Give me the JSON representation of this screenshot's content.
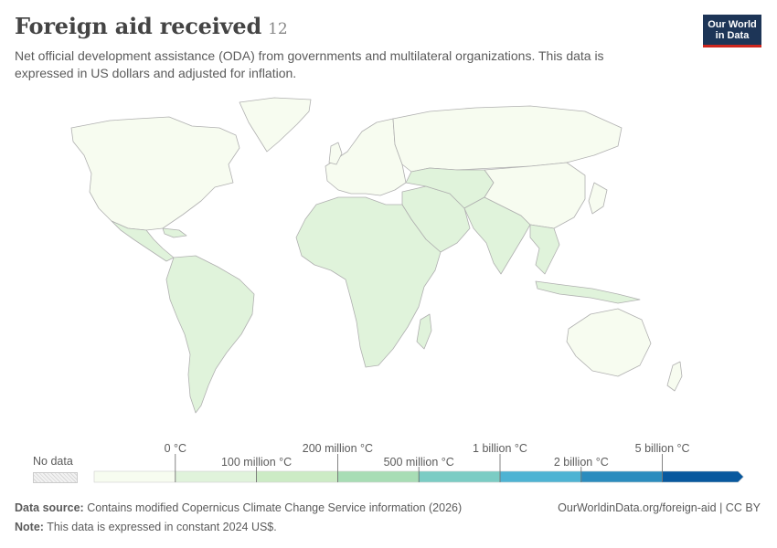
{
  "header": {
    "title": "Foreign aid received",
    "count": "12",
    "subtitle": "Net official development assistance (ODA) from governments and multilateral organizations. This data is expressed in US dollars and adjusted for inflation."
  },
  "logo": {
    "line1": "Our World",
    "line2": "in Data",
    "bg": "#1d3557",
    "accent": "#ce261e"
  },
  "legend": {
    "no_data_label": "No data",
    "bins": [
      {
        "color": "#f7fcf0"
      },
      {
        "color": "#e0f3db"
      },
      {
        "color": "#ccebc5"
      },
      {
        "color": "#a8ddb5"
      },
      {
        "color": "#7bccc4"
      },
      {
        "color": "#4eb3d3"
      },
      {
        "color": "#2b8cbe"
      },
      {
        "color": "#08589e"
      }
    ],
    "labels_top": [
      "0 °C",
      "200 million °C",
      "1 billion °C",
      "5 billion °C"
    ],
    "labels_bottom": [
      "100 million °C",
      "500 million °C",
      "2 billion °C"
    ]
  },
  "map": {
    "land_color": "#e0f3db",
    "land_color_light": "#f7fcf0",
    "border_color": "#b0b0b0",
    "regions": [
      {
        "name": "North America",
        "fill": "light"
      },
      {
        "name": "Greenland",
        "fill": "light"
      },
      {
        "name": "Central America",
        "fill": "aid"
      },
      {
        "name": "South America",
        "fill": "aid"
      },
      {
        "name": "Europe",
        "fill": "light"
      },
      {
        "name": "Africa",
        "fill": "aid"
      },
      {
        "name": "Middle East",
        "fill": "aid"
      },
      {
        "name": "Russia",
        "fill": "light"
      },
      {
        "name": "Central Asia",
        "fill": "aid"
      },
      {
        "name": "South Asia",
        "fill": "aid"
      },
      {
        "name": "China",
        "fill": "light"
      },
      {
        "name": "Southeast Asia",
        "fill": "aid"
      },
      {
        "name": "Japan",
        "fill": "light"
      },
      {
        "name": "Australia",
        "fill": "light"
      },
      {
        "name": "Indonesia",
        "fill": "aid"
      },
      {
        "name": "Madagascar",
        "fill": "aid"
      }
    ]
  },
  "footer": {
    "source_label": "Data source:",
    "source_text": "Contains modified Copernicus Climate Change Service information (2026)",
    "note_label": "Note:",
    "note_text": "This data is expressed in constant 2024 US$.",
    "url": "OurWorldinData.org/foreign-aid | CC BY"
  }
}
